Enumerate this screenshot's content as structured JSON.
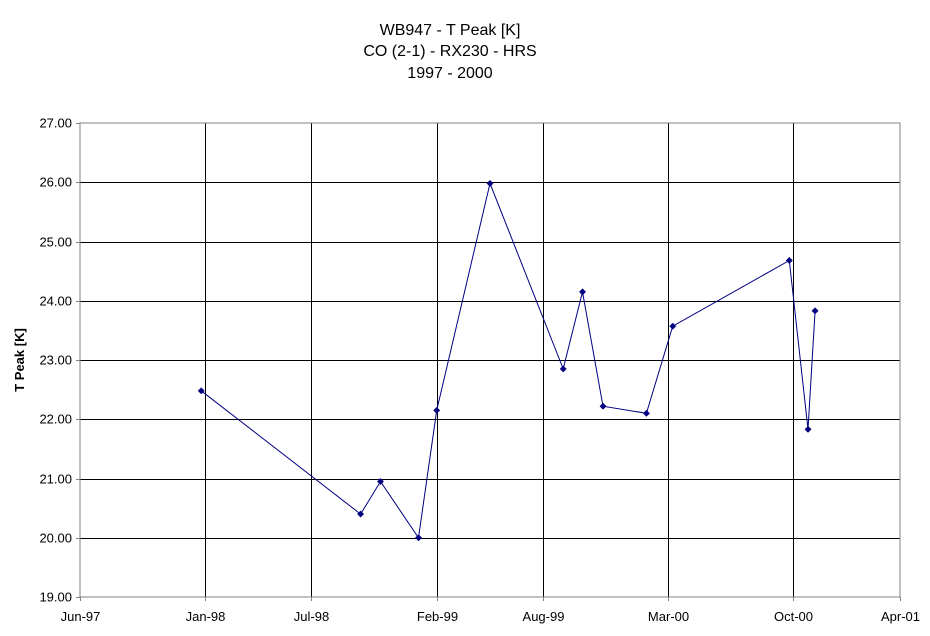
{
  "chart_data": {
    "type": "line",
    "title_lines": [
      "WB947 - T Peak [K]",
      "CO (2-1) - RX230 - HRS",
      "1997 - 2000"
    ],
    "xlabel": "",
    "ylabel": "T Peak [K]",
    "xlim": [
      "1997-06-01",
      "2001-04-01"
    ],
    "ylim": [
      19.0,
      27.0
    ],
    "x_ticks": [
      "1997-06-01",
      "1998-01-01",
      "1998-07-01",
      "1999-02-01",
      "1999-08-01",
      "2000-03-01",
      "2000-10-01",
      "2001-04-01"
    ],
    "x_tick_labels": [
      "Jun-97",
      "Jan-98",
      "Jul-98",
      "Feb-99",
      "Aug-99",
      "Mar-00",
      "Oct-00",
      "Apr-01"
    ],
    "y_ticks": [
      19.0,
      20.0,
      21.0,
      22.0,
      23.0,
      24.0,
      25.0,
      26.0,
      27.0
    ],
    "y_tick_labels": [
      "19.00",
      "20.00",
      "21.00",
      "22.00",
      "23.00",
      "24.00",
      "25.00",
      "26.00",
      "27.00"
    ],
    "grid": true,
    "legend": "none",
    "series": [
      {
        "color": "#000080",
        "x": [
          "1997-12-25",
          "1998-09-23",
          "1998-10-27",
          "1998-12-31",
          "1999-01-31",
          "1999-05-02",
          "1999-09-04",
          "1999-10-07",
          "1999-11-11",
          "2000-01-24",
          "2000-03-09",
          "2000-09-24",
          "2000-10-26",
          "2000-11-07"
        ],
        "y": [
          22.48,
          20.4,
          20.95,
          20.0,
          22.15,
          25.98,
          22.85,
          24.15,
          22.22,
          22.1,
          23.57,
          24.68,
          21.83,
          23.83
        ]
      }
    ]
  }
}
